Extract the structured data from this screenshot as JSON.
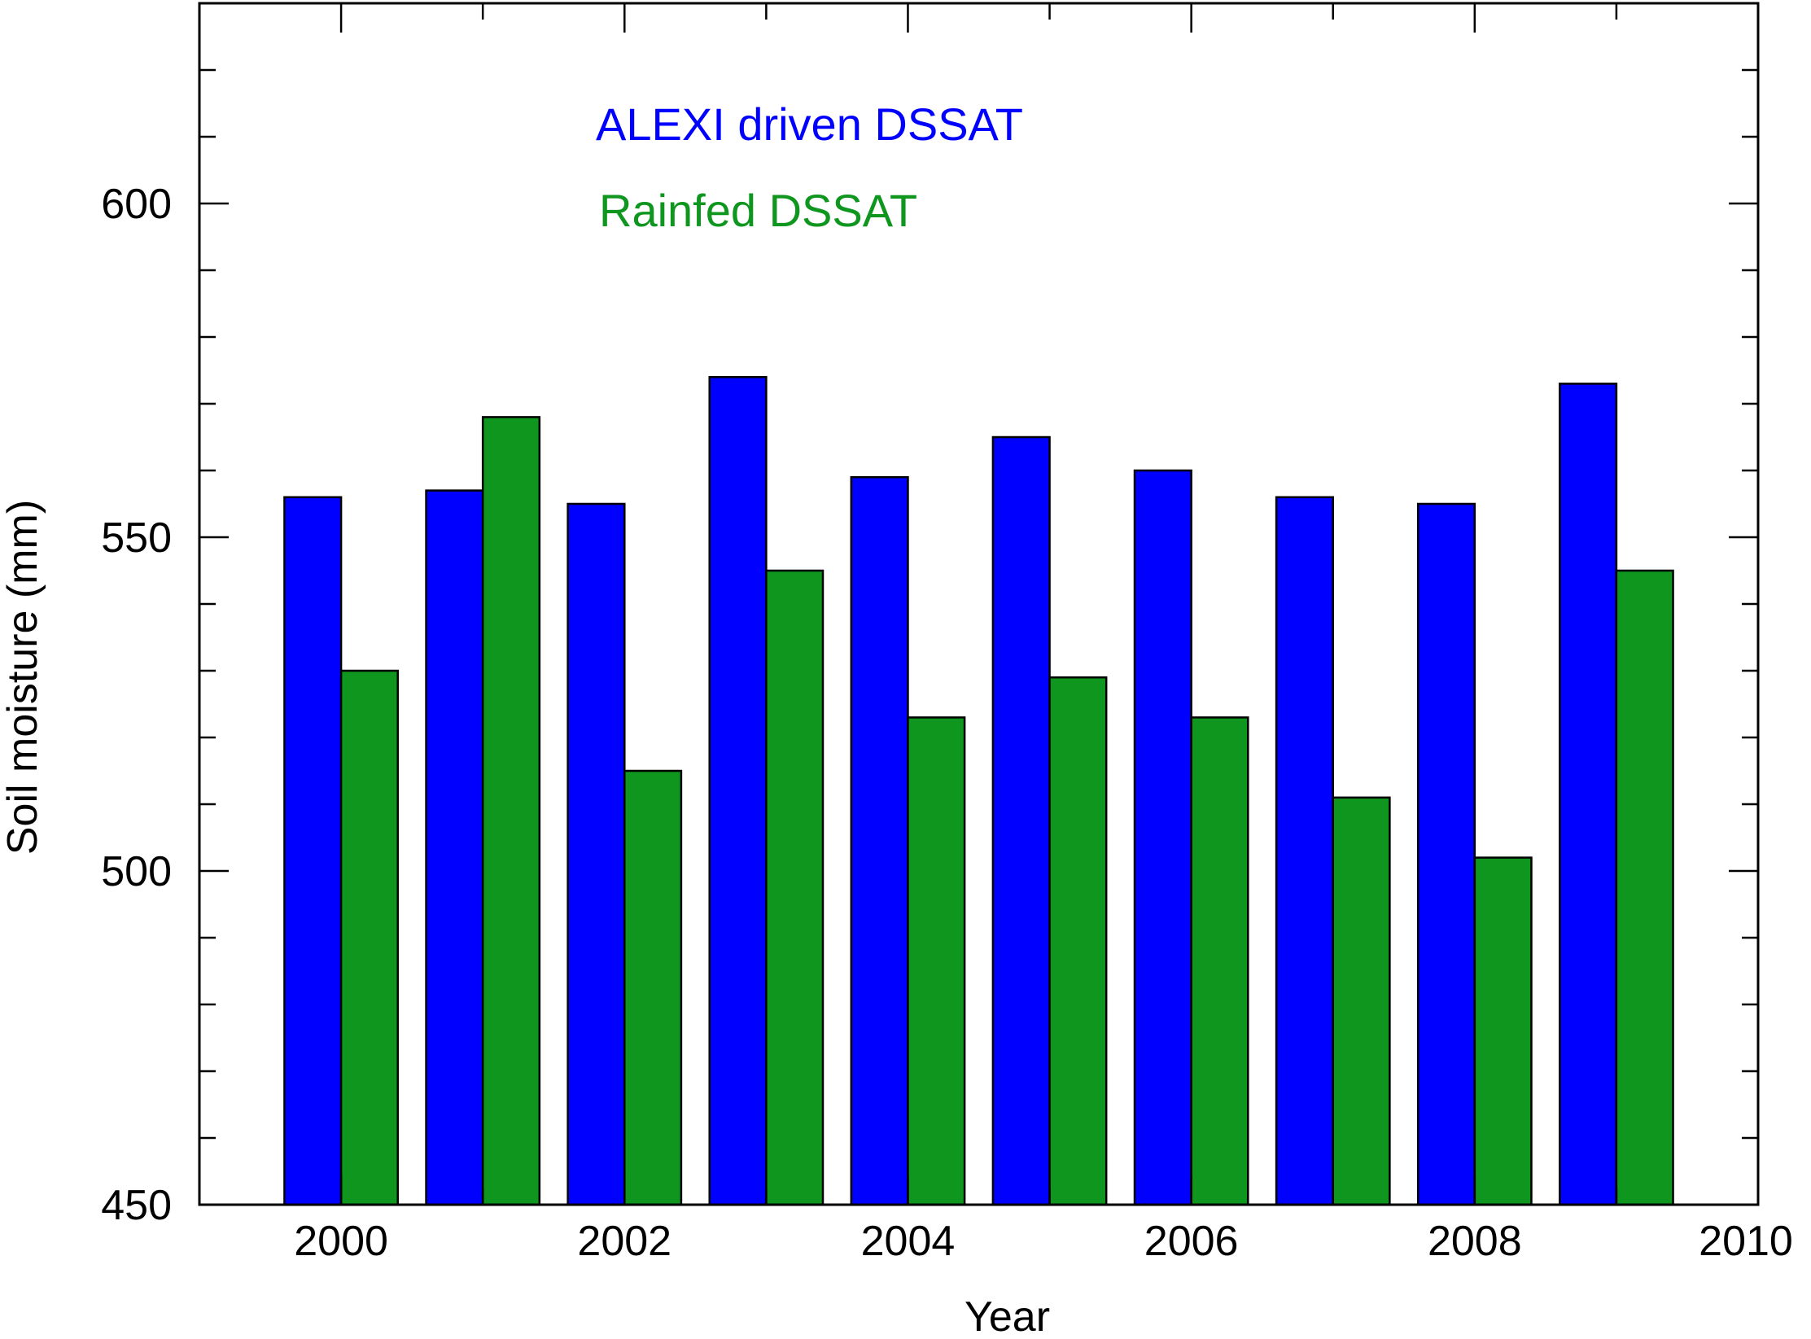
{
  "chart_data": {
    "type": "bar",
    "title": "",
    "xlabel": "Year",
    "ylabel": "Soil moisture (mm)",
    "xlim": [
      1999,
      2010
    ],
    "ylim": [
      450,
      630
    ],
    "x_ticks": [
      "2000",
      "2002",
      "2004",
      "2006",
      "2008",
      "2010"
    ],
    "y_ticks": [
      "450",
      "500",
      "550",
      "600"
    ],
    "categories": [
      "2000",
      "2001",
      "2002",
      "2003",
      "2004",
      "2005",
      "2006",
      "2007",
      "2008",
      "2009"
    ],
    "series": [
      {
        "name": "ALEXI driven DSSAT",
        "color": "#0000ff",
        "values": [
          556,
          557,
          555,
          574,
          559,
          565,
          560,
          556,
          555,
          573
        ]
      },
      {
        "name": "Rainfed DSSAT",
        "color": "#0e961e",
        "values": [
          530,
          568,
          515,
          545,
          523,
          529,
          523,
          511,
          502,
          545
        ]
      }
    ],
    "legend": "top-left",
    "grid": false
  }
}
